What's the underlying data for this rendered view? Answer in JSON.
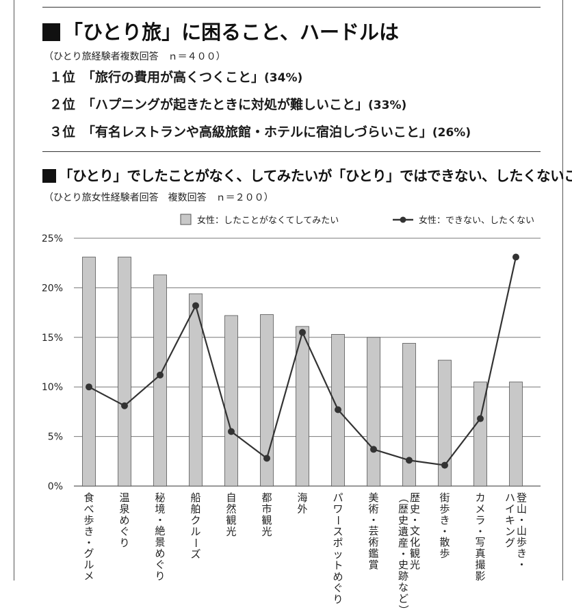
{
  "section1": {
    "title": "「ひとり旅」に困ること、ハードルは",
    "note": "（ひとり旅経験者複数回答　ｎ＝４００）",
    "ranks": [
      {
        "position": "１位",
        "text": "「旅行の費用が高くつくこと」",
        "percent": "(34%)"
      },
      {
        "position": "２位",
        "text": "「ハプニングが起きたときに対処が難しいこと」",
        "percent": "(33%)"
      },
      {
        "position": "３位",
        "text": "「有名レストランや高級旅館・ホテルに宿泊しづらいこと」",
        "percent": "(26%)"
      }
    ]
  },
  "section2": {
    "title": "「ひとり」でしたことがなく、してみたいが「ひとり」ではできない、したくないこと",
    "note": "（ひとり旅女性経験者回答　複数回答　ｎ＝２００）"
  },
  "colors": {
    "bar_fill": "#c8c8c8",
    "bar_stroke": "#555555",
    "line": "#333333",
    "grid": "#777777"
  },
  "chart_data": {
    "type": "bar+line",
    "title": "「ひとり」でしたことがなく、してみたいが「ひとり」ではできない、したくないこと",
    "categories": [
      "食べ歩き・グルメ",
      "温泉めぐり",
      "秘境・絶景めぐり",
      "船舶クルーズ",
      "自然観光",
      "都市観光",
      "海外",
      "パワースポットめぐり",
      "美術・芸術鑑賞",
      "歴史・文化観光（歴史遺産・史跡など）",
      "街歩き・散歩",
      "カメラ・写真撮影",
      "登山・山歩き・ハイキング"
    ],
    "category_lines": [
      [
        "食べ歩き・グルメ"
      ],
      [
        "温泉めぐり"
      ],
      [
        "秘境・絶景めぐり"
      ],
      [
        "船舶クルーズ"
      ],
      [
        "自然観光"
      ],
      [
        "都市観光"
      ],
      [
        "海外"
      ],
      [
        "パワースポットめぐり"
      ],
      [
        "美術・芸術鑑賞"
      ],
      [
        "歴史・文化観光",
        "（歴史遺産・史跡など）"
      ],
      [
        "街歩き・散歩"
      ],
      [
        "カメラ・写真撮影"
      ],
      [
        "登山・山歩き・",
        "ハイキング"
      ]
    ],
    "series": [
      {
        "name": "女性：したことがなくてしてみたい",
        "type": "bar",
        "values": [
          23.1,
          23.1,
          21.3,
          19.4,
          17.2,
          17.3,
          16.1,
          15.3,
          15.0,
          14.4,
          12.7,
          10.5,
          10.5
        ]
      },
      {
        "name": "女性：できない、したくない",
        "type": "line",
        "values": [
          10.0,
          8.1,
          11.2,
          18.2,
          5.5,
          2.8,
          15.5,
          7.7,
          3.7,
          2.6,
          2.1,
          6.8,
          23.1
        ]
      }
    ],
    "ylim": [
      0,
      25
    ],
    "yticks": [
      0,
      5,
      10,
      15,
      20,
      25
    ],
    "ytick_labels": [
      "0%",
      "5%",
      "10%",
      "15%",
      "20%",
      "25%"
    ],
    "grid": true,
    "legend_position": "top-right"
  }
}
